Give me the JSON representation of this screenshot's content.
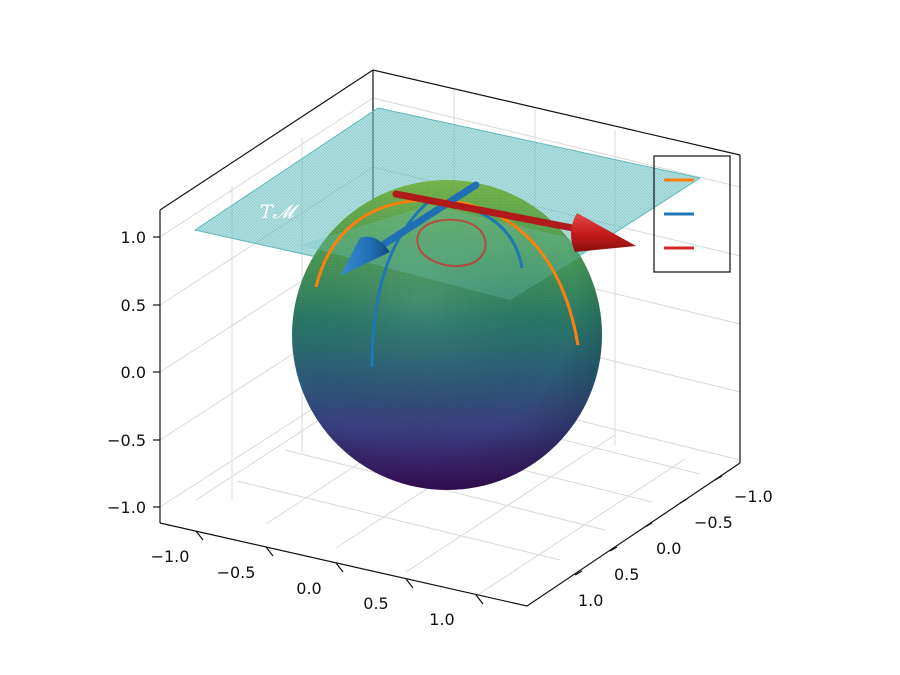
{
  "colors": {
    "background": "#ffffff",
    "plane": "#6fc4c4",
    "sphere_top": "#5fa84a",
    "sphere_bottom": "#3b0f5e",
    "orange_curve": "#ff7f0e",
    "blue_curve": "#1f77b4",
    "red_curve": "#d62728",
    "blue_arrow": "#1f6fb5",
    "red_arrow": "#c41a1a"
  },
  "chart_data": {
    "type": "surface3d",
    "title": "",
    "plane_label": "T𝓜",
    "surface": {
      "shape": "unit sphere",
      "center": [
        0,
        0,
        0
      ],
      "radius": 1,
      "colormap": "viridis (by z)"
    },
    "tangent_plane": {
      "at_point": [
        0,
        0,
        1
      ],
      "z": 1.0
    },
    "axes": {
      "x": {
        "ticks": [
          "−1.0",
          "−0.5",
          "0.0",
          "0.5",
          "1.0"
        ],
        "range": [
          -1.25,
          1.25
        ]
      },
      "y": {
        "ticks": [
          "−1.0",
          "−0.5",
          "0.0",
          "0.5",
          "1.0"
        ],
        "range": [
          -1.25,
          1.25
        ]
      },
      "z": {
        "ticks": [
          "−1.0",
          "−0.5",
          "0.0",
          "0.5",
          "1.0"
        ],
        "range": [
          -1.1,
          1.25
        ]
      }
    },
    "grid": true,
    "legend": {
      "position": "top-right",
      "entries": [
        {
          "name": "",
          "color": "#ff7f0e"
        },
        {
          "name": "",
          "color": "#1f77b4"
        },
        {
          "name": "",
          "color": "#d62728"
        }
      ]
    },
    "series": [
      {
        "type": "curve",
        "color": "#ff7f0e",
        "description": "great circle over the north pole"
      },
      {
        "type": "curve",
        "color": "#1f77b4",
        "description": "great circle through the north pole"
      },
      {
        "type": "curve",
        "color": "#d62728",
        "description": "small closed loop near the north pole"
      },
      {
        "type": "arrow",
        "color": "#1f6fb5",
        "description": "tangent vector at the north pole"
      },
      {
        "type": "arrow",
        "color": "#c41a1a",
        "description": "tangent vector at the north pole"
      }
    ]
  }
}
